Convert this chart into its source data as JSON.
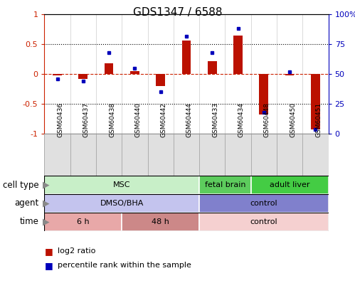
{
  "title": "GDS1347 / 6588",
  "samples": [
    "GSM60436",
    "GSM60437",
    "GSM60438",
    "GSM60440",
    "GSM60442",
    "GSM60444",
    "GSM60433",
    "GSM60434",
    "GSM60448",
    "GSM60450",
    "GSM60451"
  ],
  "log2_ratio": [
    -0.02,
    -0.08,
    0.18,
    0.05,
    -0.2,
    0.56,
    0.22,
    0.65,
    -0.67,
    -0.02,
    -0.92
  ],
  "percentile_rank": [
    46,
    44,
    68,
    55,
    35,
    82,
    68,
    88,
    18,
    52,
    4
  ],
  "cell_type_groups": [
    {
      "label": "MSC",
      "start": 0,
      "end": 5,
      "color": "#c8efc8"
    },
    {
      "label": "fetal brain",
      "start": 6,
      "end": 7,
      "color": "#5dcc5d"
    },
    {
      "label": "adult liver",
      "start": 8,
      "end": 10,
      "color": "#44cc44"
    }
  ],
  "agent_groups": [
    {
      "label": "DMSO/BHA",
      "start": 0,
      "end": 5,
      "color": "#c4c4ee"
    },
    {
      "label": "control",
      "start": 6,
      "end": 10,
      "color": "#8080cc"
    }
  ],
  "time_groups": [
    {
      "label": "6 h",
      "start": 0,
      "end": 2,
      "color": "#e8a8a8"
    },
    {
      "label": "48 h",
      "start": 3,
      "end": 5,
      "color": "#cc8888"
    },
    {
      "label": "control",
      "start": 6,
      "end": 10,
      "color": "#f5d0d0"
    }
  ],
  "bar_color": "#bb1100",
  "dot_color": "#0000bb",
  "ref_line_color": "#cc2200",
  "ylim": [
    -1,
    1
  ],
  "y2lim": [
    0,
    100
  ],
  "bar_width": 0.35,
  "label_fontsize": 8,
  "title_fontsize": 11,
  "ann_fontsize": 8
}
